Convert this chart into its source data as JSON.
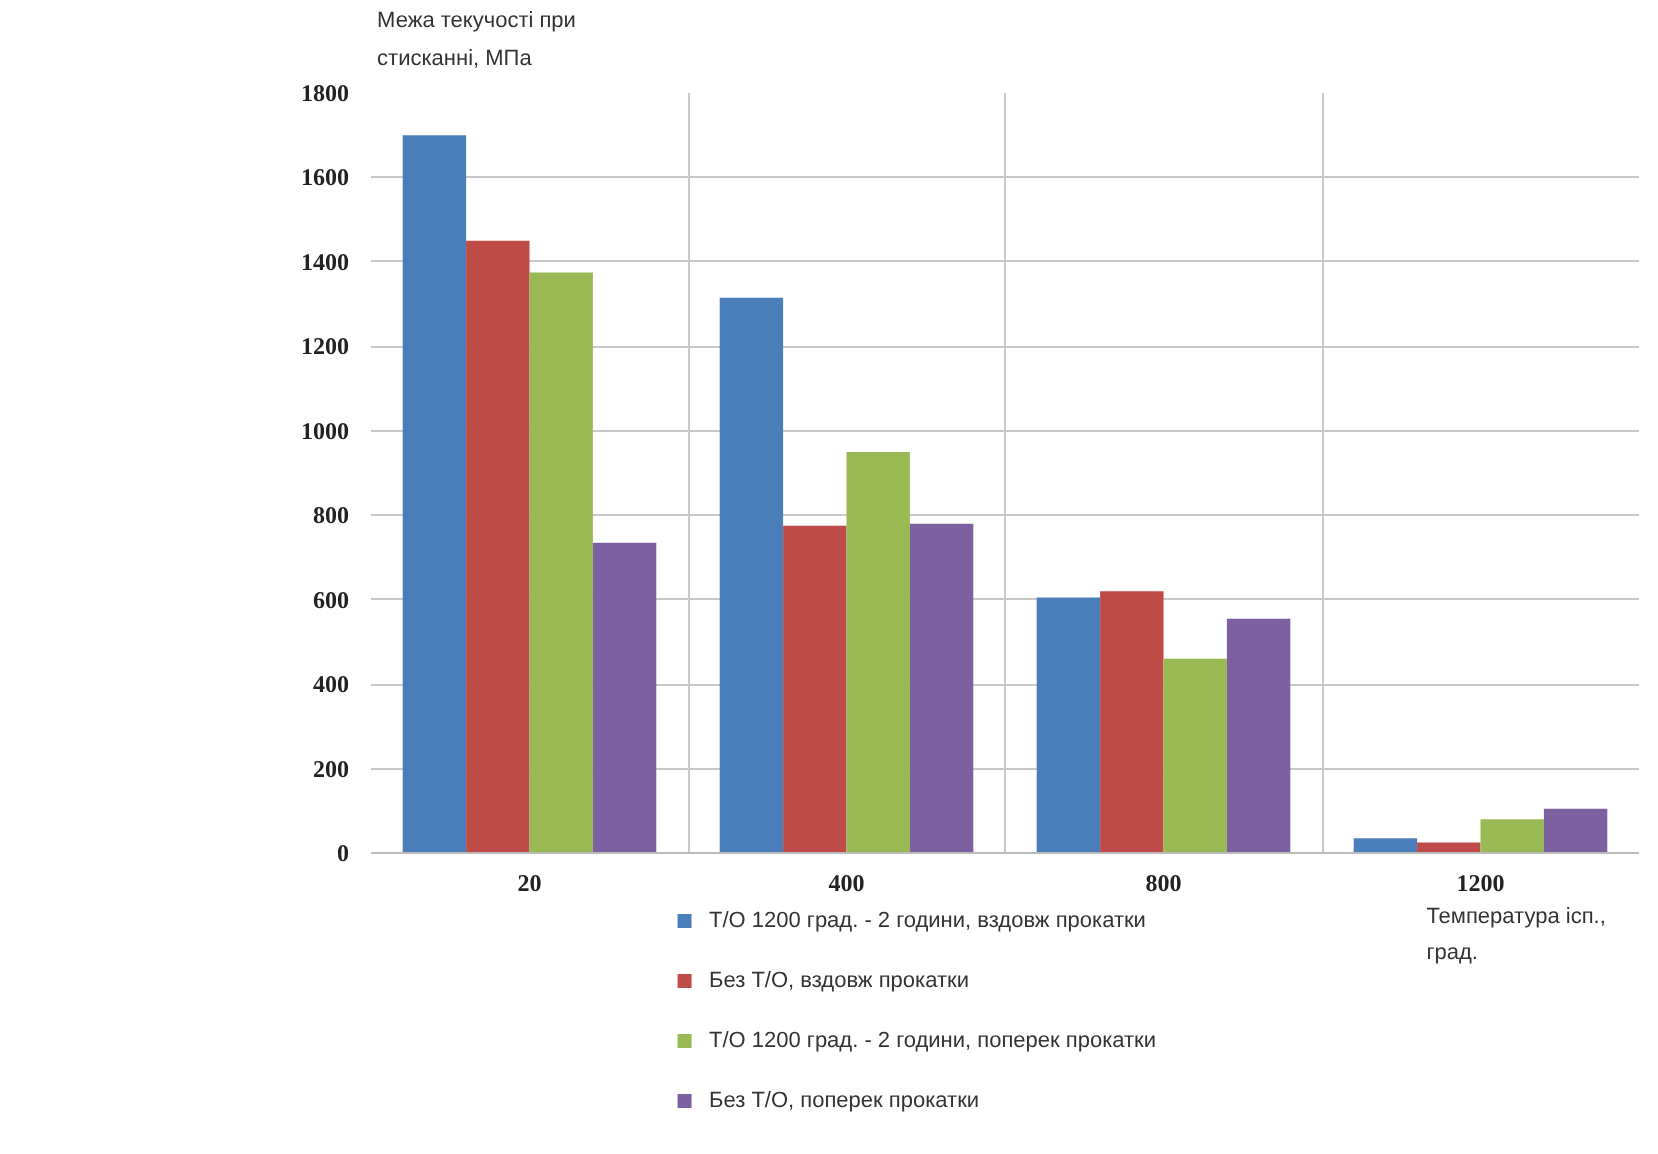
{
  "chart_data": {
    "type": "bar",
    "ylabel": "Межа текучості при\nстисканні, МПа",
    "xlabel": "Температура ісп.,\nград.",
    "categories": [
      "20",
      "400",
      "800",
      "1200"
    ],
    "series": [
      {
        "name": "Т/О 1200 град. - 2 години, вздовж прокатки",
        "color": "#4a7ebb",
        "values": [
          1700,
          1315,
          605,
          35
        ]
      },
      {
        "name": "Без Т/О, вздовж прокатки",
        "color": "#be4b48",
        "values": [
          1450,
          775,
          620,
          25
        ]
      },
      {
        "name": "Т/О 1200 град. - 2 години, поперек прокатки",
        "color": "#98b954",
        "values": [
          1375,
          950,
          460,
          80
        ]
      },
      {
        "name": "Без Т/О, поперек прокатки",
        "color": "#7d60a0",
        "values": [
          735,
          780,
          555,
          105
        ]
      }
    ],
    "ylim": [
      0,
      1800
    ],
    "yticks": [
      0,
      200,
      400,
      600,
      800,
      1000,
      1200,
      1400,
      1600,
      1800
    ],
    "grid": true,
    "legend": "bottom left"
  }
}
